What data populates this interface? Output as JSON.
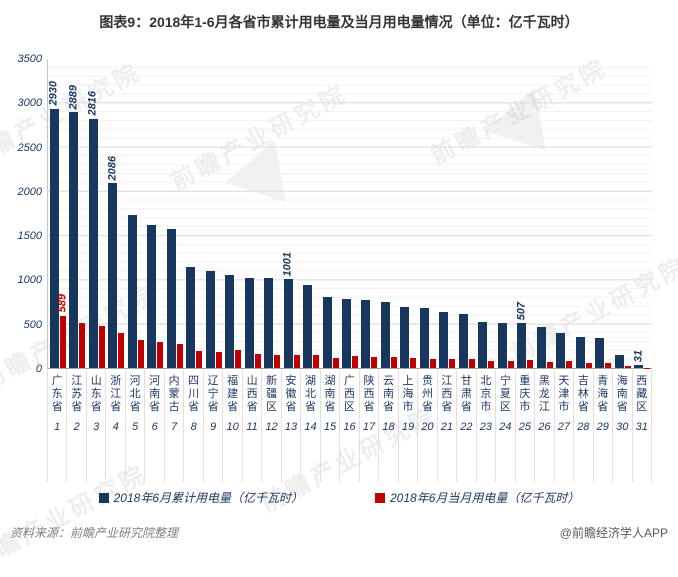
{
  "title": "图表9：2018年1-6月各省市累计用电量及当月用电量情况（单位：亿千瓦时）",
  "chart_data": {
    "type": "bar",
    "unit": "亿千瓦时",
    "categories": [
      "广东省",
      "江苏省",
      "山东省",
      "浙江省",
      "河北省",
      "河南省",
      "内蒙古",
      "四川省",
      "辽宁省",
      "福建省",
      "山西省",
      "新疆区",
      "安徽省",
      "湖北省",
      "湖南省",
      "广西区",
      "陕西省",
      "云南省",
      "上海市",
      "贵州省",
      "江西省",
      "甘肃省",
      "北京市",
      "宁夏区",
      "重庆市",
      "黑龙江",
      "天津市",
      "吉林省",
      "青海省",
      "海南省",
      "西藏区"
    ],
    "category_numbers": [
      "1",
      "2",
      "3",
      "4",
      "5",
      "6",
      "7",
      "8",
      "9",
      "10",
      "11",
      "12",
      "13",
      "14",
      "15",
      "16",
      "17",
      "18",
      "19",
      "20",
      "21",
      "22",
      "23",
      "24",
      "25",
      "26",
      "27",
      "28",
      "29",
      "30",
      "31"
    ],
    "series": [
      {
        "name": "2018年6月累计用电量（亿千瓦时）",
        "color": "#17375e",
        "values": [
          2930,
          2889,
          2816,
          2086,
          1729,
          1620,
          1572,
          1140,
          1095,
          1056,
          1022,
          1012,
          1001,
          935,
          805,
          775,
          765,
          745,
          694,
          676,
          632,
          607,
          525,
          512,
          507,
          462,
          399,
          348,
          338,
          152,
          31
        ],
        "point_labels": {
          "0": "2930",
          "1": "2889",
          "2": "2816",
          "3": "2086",
          "12": "1001",
          "24": "507",
          "30": "31"
        }
      },
      {
        "name": "2018年6月当月用电量（亿千瓦时）",
        "color": "#c00000",
        "values": [
          589,
          505,
          478,
          398,
          315,
          297,
          266,
          190,
          181,
          199,
          156,
          142,
          148,
          150,
          119,
          135,
          130,
          121,
          117,
          107,
          100,
          98,
          80,
          85,
          94,
          70,
          79,
          58,
          57,
          26,
          5
        ],
        "point_labels": {
          "0": "589"
        }
      }
    ],
    "ylim": [
      0,
      3500
    ],
    "yticks": [
      3500,
      3000,
      2500,
      2000,
      1500,
      1000,
      500,
      0
    ],
    "grid": true,
    "legend_position": "bottom"
  },
  "watermark_text": "前瞻产业研究院",
  "footer": {
    "source": "资料来源：前瞻产业研究院整理",
    "credit": "@前瞻经济学人APP"
  }
}
